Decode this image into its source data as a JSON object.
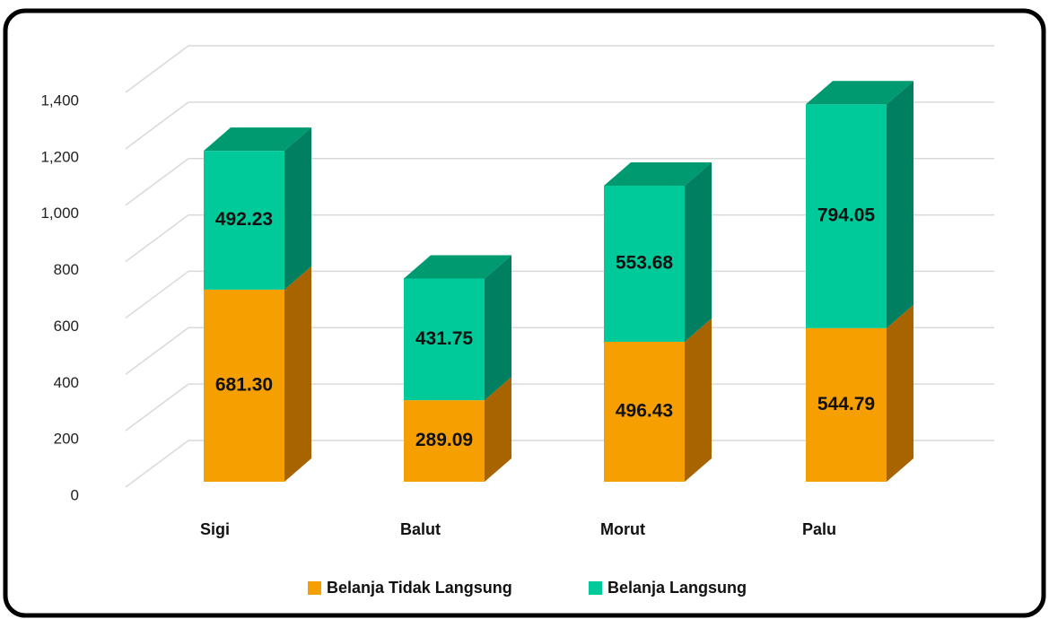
{
  "chart_data": {
    "type": "bar3d_stacked",
    "categories": [
      "Sigi",
      "Balut",
      "Morut",
      "Palu"
    ],
    "series": [
      {
        "name": "Belanja Tidak Langsung",
        "color": "#f5a000",
        "values": [
          681.3,
          289.09,
          496.43,
          544.79
        ],
        "value_labels": [
          "681.30",
          "289.09",
          "496.43",
          "544.79"
        ]
      },
      {
        "name": "Belanja Langsung",
        "color": "#00c99a",
        "values": [
          492.23,
          431.75,
          553.68,
          794.05
        ],
        "value_labels": [
          "492.23",
          "431.75",
          "553.68",
          "794.05"
        ]
      }
    ],
    "ylim": [
      0,
      1400
    ],
    "yticks": [
      0,
      200,
      400,
      600,
      800,
      {
        "value": 1000,
        "label": "1,000"
      },
      {
        "value": 1200,
        "label": "1,200"
      },
      {
        "value": 1400,
        "label": "1,400"
      }
    ],
    "grid": true,
    "legend": "bottom"
  }
}
